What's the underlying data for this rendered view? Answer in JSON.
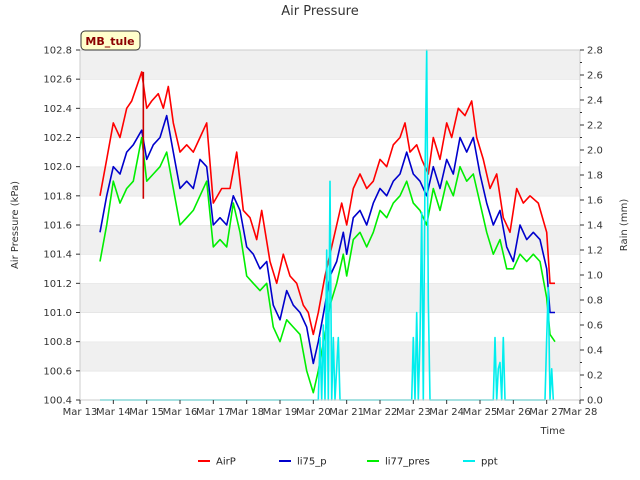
{
  "chart_data": {
    "type": "line",
    "title": "Air Pressure",
    "station_label": "MB_tule",
    "xlabel": "Time",
    "ylabel": "Air Pressure (kPa)",
    "y2label": "Rain (mm)",
    "ylim": [
      100.4,
      102.8
    ],
    "y2lim": [
      0.0,
      2.8
    ],
    "xlim": [
      13,
      28
    ],
    "x_ticks": [
      "Mar 13",
      "Mar 14",
      "Mar 15",
      "Mar 16",
      "Mar 17",
      "Mar 18",
      "Mar 19",
      "Mar 20",
      "Mar 21",
      "Mar 22",
      "Mar 23",
      "Mar 24",
      "Mar 25",
      "Mar 26",
      "Mar 27",
      "Mar 28"
    ],
    "y_ticks": [
      "100.4",
      "100.6",
      "100.8",
      "101.0",
      "101.2",
      "101.4",
      "101.6",
      "101.8",
      "102.0",
      "102.2",
      "102.4",
      "102.6",
      "102.8"
    ],
    "y2_ticks": [
      "0.0",
      "0.2",
      "0.4",
      "0.6",
      "0.8",
      "1.0",
      "1.2",
      "1.4",
      "1.6",
      "1.8",
      "2.0",
      "2.2",
      "2.4",
      "2.6",
      "2.8"
    ],
    "series": [
      {
        "name": "AirP",
        "color": "#ff0000",
        "axis": "left",
        "points": [
          [
            13.6,
            101.8
          ],
          [
            13.8,
            102.05
          ],
          [
            14.0,
            102.3
          ],
          [
            14.2,
            102.2
          ],
          [
            14.4,
            102.4
          ],
          [
            14.55,
            102.45
          ],
          [
            14.7,
            102.55
          ],
          [
            14.85,
            102.65
          ],
          [
            15.0,
            102.4
          ],
          [
            15.15,
            102.45
          ],
          [
            15.35,
            102.5
          ],
          [
            15.5,
            102.4
          ],
          [
            15.65,
            102.55
          ],
          [
            15.8,
            102.3
          ],
          [
            16.0,
            102.1
          ],
          [
            16.2,
            102.15
          ],
          [
            16.4,
            102.1
          ],
          [
            16.6,
            102.2
          ],
          [
            16.8,
            102.3
          ],
          [
            17.0,
            101.75
          ],
          [
            17.25,
            101.85
          ],
          [
            17.5,
            101.85
          ],
          [
            17.7,
            102.1
          ],
          [
            17.9,
            101.7
          ],
          [
            18.1,
            101.65
          ],
          [
            18.3,
            101.5
          ],
          [
            18.45,
            101.7
          ],
          [
            18.7,
            101.35
          ],
          [
            18.9,
            101.2
          ],
          [
            19.1,
            101.4
          ],
          [
            19.3,
            101.25
          ],
          [
            19.5,
            101.2
          ],
          [
            19.7,
            101.05
          ],
          [
            19.85,
            101.0
          ],
          [
            20.0,
            100.85
          ],
          [
            20.15,
            101.0
          ],
          [
            20.35,
            101.25
          ],
          [
            20.5,
            101.4
          ],
          [
            20.7,
            101.6
          ],
          [
            20.85,
            101.75
          ],
          [
            21.0,
            101.6
          ],
          [
            21.2,
            101.85
          ],
          [
            21.4,
            101.95
          ],
          [
            21.6,
            101.85
          ],
          [
            21.8,
            101.9
          ],
          [
            22.0,
            102.05
          ],
          [
            22.2,
            102.0
          ],
          [
            22.4,
            102.15
          ],
          [
            22.6,
            102.2
          ],
          [
            22.75,
            102.3
          ],
          [
            22.9,
            102.1
          ],
          [
            23.1,
            102.15
          ],
          [
            23.25,
            102.05
          ],
          [
            23.45,
            101.95
          ],
          [
            23.6,
            102.2
          ],
          [
            23.8,
            102.05
          ],
          [
            24.0,
            102.3
          ],
          [
            24.15,
            102.2
          ],
          [
            24.35,
            102.4
          ],
          [
            24.55,
            102.35
          ],
          [
            24.75,
            102.45
          ],
          [
            24.9,
            102.2
          ],
          [
            25.1,
            102.05
          ],
          [
            25.3,
            101.85
          ],
          [
            25.5,
            101.95
          ],
          [
            25.7,
            101.65
          ],
          [
            25.9,
            101.55
          ],
          [
            26.1,
            101.85
          ],
          [
            26.3,
            101.75
          ],
          [
            26.5,
            101.8
          ],
          [
            26.75,
            101.75
          ],
          [
            27.0,
            101.55
          ],
          [
            27.1,
            101.2
          ],
          [
            27.25,
            101.2
          ]
        ]
      },
      {
        "name": "li75_p",
        "color": "#0000cc",
        "axis": "left",
        "points": [
          [
            13.6,
            101.55
          ],
          [
            13.8,
            101.8
          ],
          [
            14.0,
            102.0
          ],
          [
            14.2,
            101.95
          ],
          [
            14.4,
            102.1
          ],
          [
            14.6,
            102.15
          ],
          [
            14.85,
            102.25
          ],
          [
            15.0,
            102.05
          ],
          [
            15.2,
            102.15
          ],
          [
            15.4,
            102.2
          ],
          [
            15.6,
            102.35
          ],
          [
            15.8,
            102.1
          ],
          [
            16.0,
            101.85
          ],
          [
            16.2,
            101.9
          ],
          [
            16.4,
            101.85
          ],
          [
            16.6,
            102.05
          ],
          [
            16.8,
            102.0
          ],
          [
            17.0,
            101.6
          ],
          [
            17.2,
            101.65
          ],
          [
            17.4,
            101.6
          ],
          [
            17.6,
            101.8
          ],
          [
            17.8,
            101.7
          ],
          [
            18.0,
            101.45
          ],
          [
            18.2,
            101.4
          ],
          [
            18.4,
            101.3
          ],
          [
            18.6,
            101.35
          ],
          [
            18.8,
            101.05
          ],
          [
            19.0,
            100.95
          ],
          [
            19.2,
            101.15
          ],
          [
            19.4,
            101.05
          ],
          [
            19.6,
            101.0
          ],
          [
            19.8,
            100.9
          ],
          [
            20.0,
            100.65
          ],
          [
            20.15,
            100.8
          ],
          [
            20.35,
            101.05
          ],
          [
            20.5,
            101.25
          ],
          [
            20.7,
            101.35
          ],
          [
            20.9,
            101.55
          ],
          [
            21.0,
            101.4
          ],
          [
            21.2,
            101.65
          ],
          [
            21.4,
            101.7
          ],
          [
            21.6,
            101.6
          ],
          [
            21.8,
            101.75
          ],
          [
            22.0,
            101.85
          ],
          [
            22.2,
            101.8
          ],
          [
            22.4,
            101.9
          ],
          [
            22.6,
            101.95
          ],
          [
            22.8,
            102.1
          ],
          [
            23.0,
            101.95
          ],
          [
            23.2,
            101.9
          ],
          [
            23.4,
            101.8
          ],
          [
            23.6,
            102.0
          ],
          [
            23.8,
            101.85
          ],
          [
            24.0,
            102.05
          ],
          [
            24.2,
            101.95
          ],
          [
            24.4,
            102.2
          ],
          [
            24.6,
            102.1
          ],
          [
            24.8,
            102.2
          ],
          [
            25.0,
            101.95
          ],
          [
            25.2,
            101.75
          ],
          [
            25.4,
            101.6
          ],
          [
            25.6,
            101.7
          ],
          [
            25.8,
            101.45
          ],
          [
            26.0,
            101.35
          ],
          [
            26.2,
            101.6
          ],
          [
            26.4,
            101.5
          ],
          [
            26.6,
            101.55
          ],
          [
            26.8,
            101.5
          ],
          [
            27.0,
            101.3
          ],
          [
            27.1,
            101.0
          ],
          [
            27.25,
            101.0
          ]
        ]
      },
      {
        "name": "li77_pres",
        "color": "#00ee00",
        "axis": "left",
        "points": [
          [
            13.6,
            101.35
          ],
          [
            13.8,
            101.6
          ],
          [
            14.0,
            101.9
          ],
          [
            14.2,
            101.75
          ],
          [
            14.4,
            101.85
          ],
          [
            14.6,
            101.9
          ],
          [
            14.85,
            102.2
          ],
          [
            15.0,
            101.9
          ],
          [
            15.2,
            101.95
          ],
          [
            15.4,
            102.0
          ],
          [
            15.6,
            102.1
          ],
          [
            15.8,
            101.85
          ],
          [
            16.0,
            101.6
          ],
          [
            16.2,
            101.65
          ],
          [
            16.4,
            101.7
          ],
          [
            16.6,
            101.8
          ],
          [
            16.8,
            101.9
          ],
          [
            17.0,
            101.45
          ],
          [
            17.2,
            101.5
          ],
          [
            17.4,
            101.45
          ],
          [
            17.6,
            101.75
          ],
          [
            17.8,
            101.55
          ],
          [
            18.0,
            101.25
          ],
          [
            18.2,
            101.2
          ],
          [
            18.4,
            101.15
          ],
          [
            18.6,
            101.2
          ],
          [
            18.8,
            100.9
          ],
          [
            19.0,
            100.8
          ],
          [
            19.2,
            100.95
          ],
          [
            19.4,
            100.9
          ],
          [
            19.6,
            100.85
          ],
          [
            19.8,
            100.6
          ],
          [
            20.0,
            100.45
          ],
          [
            20.15,
            100.6
          ],
          [
            20.35,
            100.85
          ],
          [
            20.5,
            101.05
          ],
          [
            20.7,
            101.2
          ],
          [
            20.9,
            101.4
          ],
          [
            21.0,
            101.25
          ],
          [
            21.2,
            101.5
          ],
          [
            21.4,
            101.55
          ],
          [
            21.6,
            101.45
          ],
          [
            21.8,
            101.55
          ],
          [
            22.0,
            101.7
          ],
          [
            22.2,
            101.65
          ],
          [
            22.4,
            101.75
          ],
          [
            22.6,
            101.8
          ],
          [
            22.8,
            101.9
          ],
          [
            23.0,
            101.75
          ],
          [
            23.2,
            101.7
          ],
          [
            23.4,
            101.6
          ],
          [
            23.6,
            101.85
          ],
          [
            23.8,
            101.7
          ],
          [
            24.0,
            101.9
          ],
          [
            24.2,
            101.8
          ],
          [
            24.4,
            102.0
          ],
          [
            24.6,
            101.9
          ],
          [
            24.8,
            101.95
          ],
          [
            25.0,
            101.75
          ],
          [
            25.2,
            101.55
          ],
          [
            25.4,
            101.4
          ],
          [
            25.6,
            101.5
          ],
          [
            25.8,
            101.3
          ],
          [
            26.0,
            101.3
          ],
          [
            26.2,
            101.4
          ],
          [
            26.4,
            101.35
          ],
          [
            26.6,
            101.4
          ],
          [
            26.8,
            101.35
          ],
          [
            27.0,
            101.1
          ],
          [
            27.1,
            100.85
          ],
          [
            27.25,
            100.8
          ]
        ]
      },
      {
        "name": "ppt",
        "color": "#00eeee",
        "axis": "right",
        "points": [
          [
            13.6,
            0.0
          ],
          [
            20.15,
            0.0
          ],
          [
            20.2,
            0.5
          ],
          [
            20.25,
            0.0
          ],
          [
            20.3,
            0.6
          ],
          [
            20.35,
            0.0
          ],
          [
            20.4,
            1.2
          ],
          [
            20.45,
            0.0
          ],
          [
            20.5,
            1.75
          ],
          [
            20.55,
            0.0
          ],
          [
            20.6,
            0.5
          ],
          [
            20.65,
            0.0
          ],
          [
            20.75,
            0.5
          ],
          [
            20.8,
            0.0
          ],
          [
            22.95,
            0.0
          ],
          [
            23.0,
            0.5
          ],
          [
            23.05,
            0.0
          ],
          [
            23.1,
            0.7
          ],
          [
            23.15,
            0.0
          ],
          [
            23.2,
            0.5
          ],
          [
            23.25,
            1.5
          ],
          [
            23.3,
            0.0
          ],
          [
            23.35,
            1.8
          ],
          [
            23.4,
            2.8
          ],
          [
            23.45,
            0.8
          ],
          [
            23.5,
            0.0
          ],
          [
            25.4,
            0.0
          ],
          [
            25.45,
            0.5
          ],
          [
            25.5,
            0.0
          ],
          [
            25.55,
            0.25
          ],
          [
            25.6,
            0.3
          ],
          [
            25.65,
            0.0
          ],
          [
            25.7,
            0.5
          ],
          [
            25.75,
            0.0
          ],
          [
            26.95,
            0.0
          ],
          [
            27.0,
            0.5
          ],
          [
            27.05,
            0.9
          ],
          [
            27.1,
            0.0
          ],
          [
            27.15,
            0.25
          ],
          [
            27.2,
            0.0
          ]
        ]
      }
    ],
    "extra_marks": [
      {
        "name": "AirP",
        "color": "#cc0000",
        "x": 14.9,
        "y1": 102.65,
        "y2": 101.78
      }
    ],
    "legend": [
      "AirP",
      "li75_p",
      "li77_pres",
      "ppt"
    ],
    "legend_location": "bottom-center",
    "grid": true
  }
}
